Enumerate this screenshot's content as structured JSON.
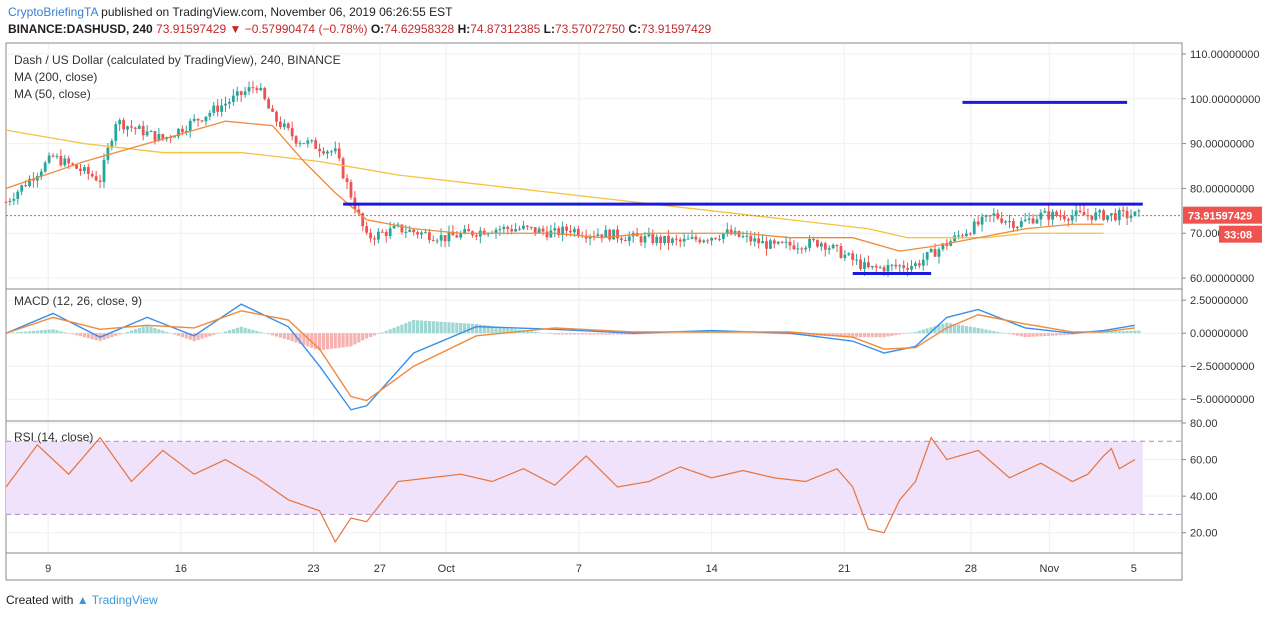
{
  "header": {
    "publisher": "CryptoBriefingTA",
    "published_text": "published on TradingView.com, November 06, 2019 06:26:55 EST",
    "symbol": "BINANCE:DASHUSD, 240",
    "close_value": "73.91597429",
    "change_arrow": "▼",
    "change_text": "−0.57990474 (−0.78%)",
    "o_label": "O:",
    "o_value": "74.62958328",
    "h_label": "H:",
    "h_value": "74.87312385",
    "l_label": "L:",
    "l_value": "73.57072750",
    "c_label": "C:",
    "c_value": "73.91597429"
  },
  "legend": {
    "title": "Dash / US Dollar (calculated by TradingView), 240, BINANCE",
    "ma200": "MA (200, close)",
    "ma50": "MA (50, close)",
    "macd": "MACD (12, 26, close, 9)",
    "rsi": "RSI (14, close)"
  },
  "price_tags": {
    "last_price": "73.91597429",
    "countdown": "33:08"
  },
  "footer": {
    "created_with": "Created with",
    "brand": "TradingView"
  },
  "colors": {
    "up": "#26a69a",
    "down": "#ef5350",
    "ma200": "#f5c242",
    "ma50": "#f08a3c",
    "trendline": "#1a1adb",
    "macd": "#3b8fe8",
    "signal": "#f08a3c",
    "rsi": "#e8743b",
    "rsi_band": "#f0e2fb"
  },
  "chart_data": [
    {
      "type": "candlestick",
      "title": "Dash / US Dollar (calculated by TradingView), 240, BINANCE",
      "x_tick_labels": [
        "9",
        "16",
        "23",
        "27",
        "Oct",
        "7",
        "14",
        "21",
        "28",
        "Nov",
        "5"
      ],
      "y_tick_labels": [
        "60.00000000",
        "70.00000000",
        "80.00000000",
        "90.00000000",
        "100.00000000",
        "110.00000000"
      ],
      "ylim": [
        58,
        112
      ],
      "last_price": 73.91597429,
      "series": [
        {
          "name": "Price (approx. close path)",
          "x": [
            0,
            6,
            12,
            14,
            20,
            26,
            32,
            34,
            37,
            42,
            46,
            50,
            56,
            62,
            66,
            70,
            72,
            74,
            76,
            80,
            86,
            92,
            98,
            104,
            110,
            116,
            122,
            126,
            129,
            132
          ],
          "values": [
            77,
            87,
            82,
            95,
            91,
            97,
            103,
            96,
            91,
            88,
            69,
            71,
            69,
            71,
            71,
            70,
            71,
            70,
            70,
            69,
            68,
            70,
            67,
            68,
            62,
            63,
            70,
            74,
            72,
            74
          ]
        },
        {
          "name": "MA (200, close)",
          "x": [
            0,
            10,
            20,
            30,
            40,
            50,
            60,
            70,
            80,
            90,
            100,
            110,
            115,
            120,
            125,
            130,
            135,
            140
          ],
          "values": [
            93,
            90,
            88,
            88,
            86,
            83,
            81,
            79,
            77,
            75,
            73,
            71,
            69,
            69,
            69,
            70,
            70,
            70
          ]
        },
        {
          "name": "MA (50, close)",
          "x": [
            0,
            10,
            20,
            28,
            34,
            38,
            42,
            46,
            52,
            58,
            64,
            70,
            76,
            82,
            88,
            94,
            100,
            108,
            114,
            118,
            124,
            130,
            136,
            140
          ],
          "values": [
            80,
            86,
            91,
            95,
            94,
            86,
            79,
            73,
            71,
            70,
            70,
            70,
            69,
            70,
            70,
            70,
            69,
            69,
            66,
            67,
            69,
            71,
            72,
            72
          ]
        }
      ],
      "trendlines": [
        {
          "from": [
            43,
            76.5
          ],
          "to": [
            145,
            76.5
          ]
        },
        {
          "from": [
            122,
            99.2
          ],
          "to": [
            143,
            99.2
          ]
        },
        {
          "from": [
            108,
            61
          ],
          "to": [
            118,
            61
          ]
        }
      ]
    },
    {
      "type": "line",
      "title": "MACD (12, 26, close, 9)",
      "y_tick_labels": [
        "−5.00000000",
        "−2.50000000",
        "0.00000000",
        "2.50000000"
      ],
      "ylim": [
        -6.5,
        3.2
      ],
      "series": [
        {
          "name": "MACD",
          "x": [
            0,
            6,
            12,
            18,
            24,
            30,
            36,
            40,
            44,
            46,
            52,
            60,
            70,
            80,
            90,
            100,
            108,
            112,
            116,
            120,
            124,
            130,
            136,
            140,
            144
          ],
          "values": [
            0,
            1.5,
            -0.3,
            1.2,
            -0.2,
            2.2,
            0.5,
            -2.5,
            -5.8,
            -5.5,
            -1.5,
            0.5,
            0.3,
            0,
            0.2,
            0,
            -0.6,
            -1.5,
            -1,
            1.2,
            1.8,
            0.4,
            0,
            0.2,
            0.6
          ]
        },
        {
          "name": "Signal",
          "x": [
            0,
            6,
            12,
            18,
            24,
            30,
            36,
            40,
            44,
            46,
            52,
            60,
            70,
            80,
            90,
            100,
            108,
            112,
            116,
            120,
            124,
            130,
            136,
            140,
            144
          ],
          "values": [
            0,
            1.2,
            0.3,
            0.6,
            0.4,
            1.7,
            1,
            -1.2,
            -4.8,
            -5.1,
            -2.5,
            -0.2,
            0.4,
            0.1,
            0.1,
            0.1,
            -0.3,
            -1.2,
            -1.1,
            0.4,
            1.4,
            0.7,
            0.1,
            0.1,
            0.4
          ]
        }
      ]
    },
    {
      "type": "line",
      "title": "RSI (14, close)",
      "y_tick_labels": [
        "20.00",
        "40.00",
        "60.00",
        "80.00"
      ],
      "ylim": [
        10,
        80
      ],
      "bands": [
        30,
        70
      ],
      "series": [
        {
          "name": "RSI",
          "x": [
            0,
            4,
            8,
            12,
            16,
            20,
            24,
            28,
            32,
            36,
            40,
            42,
            44,
            46,
            50,
            54,
            58,
            62,
            66,
            70,
            74,
            78,
            82,
            86,
            90,
            94,
            98,
            102,
            106,
            108,
            110,
            112,
            114,
            116,
            118,
            120,
            124,
            128,
            132,
            136,
            138,
            140,
            141,
            142,
            144
          ],
          "values": [
            45,
            68,
            52,
            72,
            48,
            65,
            52,
            60,
            50,
            38,
            32,
            15,
            28,
            26,
            48,
            50,
            52,
            48,
            55,
            46,
            62,
            45,
            48,
            56,
            50,
            54,
            50,
            48,
            55,
            45,
            22,
            20,
            38,
            48,
            72,
            60,
            65,
            50,
            58,
            48,
            52,
            62,
            66,
            55,
            60
          ]
        }
      ]
    }
  ]
}
